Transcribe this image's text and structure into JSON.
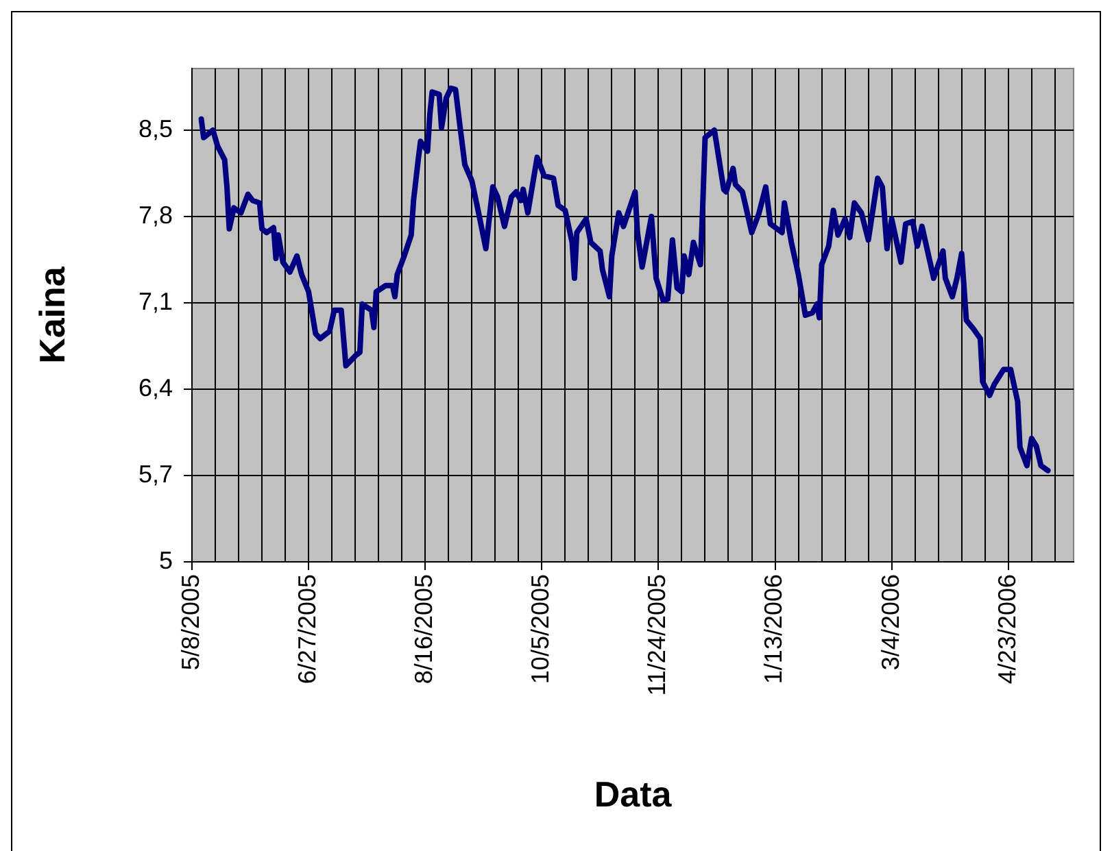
{
  "chart_data": {
    "type": "line",
    "xlabel": "Data",
    "ylabel": "Kaina",
    "color": "#000080",
    "grid": true,
    "legend": false,
    "x": [
      "2005-05-12",
      "2005-05-13",
      "2005-05-17",
      "2005-05-19",
      "2005-05-22",
      "2005-05-23",
      "2005-05-24",
      "2005-05-26",
      "2005-05-29",
      "2005-06-01",
      "2005-06-03",
      "2005-06-06",
      "2005-06-07",
      "2005-06-09",
      "2005-06-12",
      "2005-06-13",
      "2005-06-14",
      "2005-06-16",
      "2005-06-19",
      "2005-06-22",
      "2005-06-24",
      "2005-06-27",
      "2005-06-30",
      "2005-07-02",
      "2005-07-06",
      "2005-07-08",
      "2005-07-11",
      "2005-07-13",
      "2005-07-17",
      "2005-07-19",
      "2005-07-20",
      "2005-07-24",
      "2005-07-25",
      "2005-07-26",
      "2005-07-30",
      "2005-08-02",
      "2005-08-03",
      "2005-08-04",
      "2005-08-07",
      "2005-08-10",
      "2005-08-11",
      "2005-08-13",
      "2005-08-14",
      "2005-08-17",
      "2005-08-18",
      "2005-08-19",
      "2005-08-22",
      "2005-08-23",
      "2005-08-25",
      "2005-08-27",
      "2005-08-29",
      "2005-08-31",
      "2005-09-02",
      "2005-09-05",
      "2005-09-08",
      "2005-09-11",
      "2005-09-14",
      "2005-09-16",
      "2005-09-19",
      "2005-09-22",
      "2005-09-24",
      "2005-09-26",
      "2005-09-27",
      "2005-09-29",
      "2005-10-03",
      "2005-10-06",
      "2005-10-10",
      "2005-10-12",
      "2005-10-15",
      "2005-10-18",
      "2005-10-19",
      "2005-10-20",
      "2005-10-24",
      "2005-10-26",
      "2005-10-30",
      "2005-10-31",
      "2005-11-03",
      "2005-11-04",
      "2005-11-07",
      "2005-11-09",
      "2005-11-14",
      "2005-11-15",
      "2005-11-17",
      "2005-11-21",
      "2005-11-23",
      "2005-11-26",
      "2005-11-28",
      "2005-11-30",
      "2005-12-02",
      "2005-12-04",
      "2005-12-05",
      "2005-12-07",
      "2005-12-09",
      "2005-12-12",
      "2005-12-13",
      "2005-12-14",
      "2005-12-18",
      "2005-12-20",
      "2005-12-22",
      "2005-12-23",
      "2005-12-26",
      "2005-12-27",
      "2005-12-30",
      "2006-01-03",
      "2006-01-06",
      "2006-01-09",
      "2006-01-11",
      "2006-01-16",
      "2006-01-17",
      "2006-01-20",
      "2006-01-23",
      "2006-01-26",
      "2006-01-29",
      "2006-01-31",
      "2006-02-01",
      "2006-02-02",
      "2006-02-05",
      "2006-02-07",
      "2006-02-09",
      "2006-02-12",
      "2006-02-14",
      "2006-02-16",
      "2006-02-19",
      "2006-02-22",
      "2006-02-26",
      "2006-02-28",
      "2006-03-02",
      "2006-03-04",
      "2006-03-08",
      "2006-03-10",
      "2006-03-13",
      "2006-03-15",
      "2006-03-17",
      "2006-03-22",
      "2006-03-26",
      "2006-03-27",
      "2006-03-30",
      "2006-04-01",
      "2006-04-03",
      "2006-04-05",
      "2006-04-08",
      "2006-04-11",
      "2006-04-12",
      "2006-04-15",
      "2006-04-17",
      "2006-04-21",
      "2006-04-24",
      "2006-04-27",
      "2006-04-28",
      "2006-05-01",
      "2006-05-03",
      "2006-05-05",
      "2006-05-07",
      "2006-05-10"
    ],
    "values": [
      8.59,
      8.44,
      8.5,
      8.37,
      8.26,
      8.04,
      7.7,
      7.87,
      7.83,
      7.98,
      7.93,
      7.91,
      7.7,
      7.67,
      7.71,
      7.46,
      7.65,
      7.43,
      7.35,
      7.48,
      7.33,
      7.19,
      6.85,
      6.81,
      6.87,
      7.04,
      7.04,
      6.59,
      6.67,
      6.7,
      7.09,
      7.04,
      6.9,
      7.19,
      7.24,
      7.24,
      7.15,
      7.33,
      7.48,
      7.65,
      7.93,
      8.26,
      8.41,
      8.33,
      8.63,
      8.81,
      8.79,
      8.52,
      8.76,
      8.84,
      8.83,
      8.52,
      8.22,
      8.09,
      7.82,
      7.54,
      8.04,
      7.96,
      7.72,
      7.96,
      8.0,
      7.93,
      8.02,
      7.83,
      8.28,
      8.13,
      8.11,
      7.89,
      7.85,
      7.59,
      7.3,
      7.67,
      7.78,
      7.59,
      7.52,
      7.37,
      7.15,
      7.48,
      7.83,
      7.72,
      8.0,
      7.67,
      7.39,
      7.8,
      7.3,
      7.12,
      7.13,
      7.61,
      7.22,
      7.19,
      7.48,
      7.33,
      7.59,
      7.41,
      7.89,
      8.44,
      8.5,
      8.26,
      8.02,
      8.0,
      8.19,
      8.06,
      8.0,
      7.67,
      7.82,
      8.04,
      7.74,
      7.67,
      7.91,
      7.59,
      7.33,
      7.0,
      7.02,
      7.09,
      6.98,
      7.41,
      7.56,
      7.85,
      7.65,
      7.78,
      7.63,
      7.91,
      7.83,
      7.61,
      8.11,
      8.04,
      7.54,
      7.78,
      7.43,
      7.74,
      7.76,
      7.56,
      7.72,
      7.3,
      7.52,
      7.3,
      7.15,
      7.3,
      7.5,
      6.96,
      6.89,
      6.81,
      6.46,
      6.35,
      6.44,
      6.56,
      6.56,
      6.3,
      5.93,
      5.78,
      6.0,
      5.94,
      5.78,
      5.74
    ],
    "xlim": [
      "2005-05-08",
      "2006-05-21"
    ],
    "xticks": [
      {
        "value": "2005-05-08",
        "label": "5/8/2005"
      },
      {
        "value": "2005-05-18",
        "label": null
      },
      {
        "value": "2005-05-28",
        "label": null
      },
      {
        "value": "2005-06-07",
        "label": null
      },
      {
        "value": "2005-06-17",
        "label": null
      },
      {
        "value": "2005-06-27",
        "label": "6/27/2005"
      },
      {
        "value": "2005-07-07",
        "label": null
      },
      {
        "value": "2005-07-17",
        "label": null
      },
      {
        "value": "2005-07-27",
        "label": null
      },
      {
        "value": "2005-08-06",
        "label": null
      },
      {
        "value": "2005-08-16",
        "label": "8/16/2005"
      },
      {
        "value": "2005-08-26",
        "label": null
      },
      {
        "value": "2005-09-05",
        "label": null
      },
      {
        "value": "2005-09-15",
        "label": null
      },
      {
        "value": "2005-09-25",
        "label": null
      },
      {
        "value": "2005-10-05",
        "label": "10/5/2005"
      },
      {
        "value": "2005-10-15",
        "label": null
      },
      {
        "value": "2005-10-25",
        "label": null
      },
      {
        "value": "2005-11-04",
        "label": null
      },
      {
        "value": "2005-11-14",
        "label": null
      },
      {
        "value": "2005-11-24",
        "label": "11/24/2005"
      },
      {
        "value": "2005-12-04",
        "label": null
      },
      {
        "value": "2005-12-14",
        "label": null
      },
      {
        "value": "2005-12-24",
        "label": null
      },
      {
        "value": "2006-01-03",
        "label": null
      },
      {
        "value": "2006-01-13",
        "label": "1/13/2006"
      },
      {
        "value": "2006-01-23",
        "label": null
      },
      {
        "value": "2006-02-02",
        "label": null
      },
      {
        "value": "2006-02-12",
        "label": null
      },
      {
        "value": "2006-02-22",
        "label": null
      },
      {
        "value": "2006-03-04",
        "label": "3/4/2006"
      },
      {
        "value": "2006-03-14",
        "label": null
      },
      {
        "value": "2006-03-24",
        "label": null
      },
      {
        "value": "2006-04-03",
        "label": null
      },
      {
        "value": "2006-04-13",
        "label": null
      },
      {
        "value": "2006-04-23",
        "label": "4/23/2006"
      },
      {
        "value": "2006-05-03",
        "label": null
      },
      {
        "value": "2006-05-13",
        "label": null
      }
    ],
    "ylim": [
      5,
      9
    ],
    "yticks": [
      5,
      {
        "value": 5.7,
        "label": "5,7"
      },
      {
        "value": 6.4,
        "label": "6,4"
      },
      {
        "value": 7.1,
        "label": "7,1"
      },
      {
        "value": 7.8,
        "label": "7,8"
      },
      {
        "value": 8.5,
        "label": "8,5"
      }
    ]
  }
}
